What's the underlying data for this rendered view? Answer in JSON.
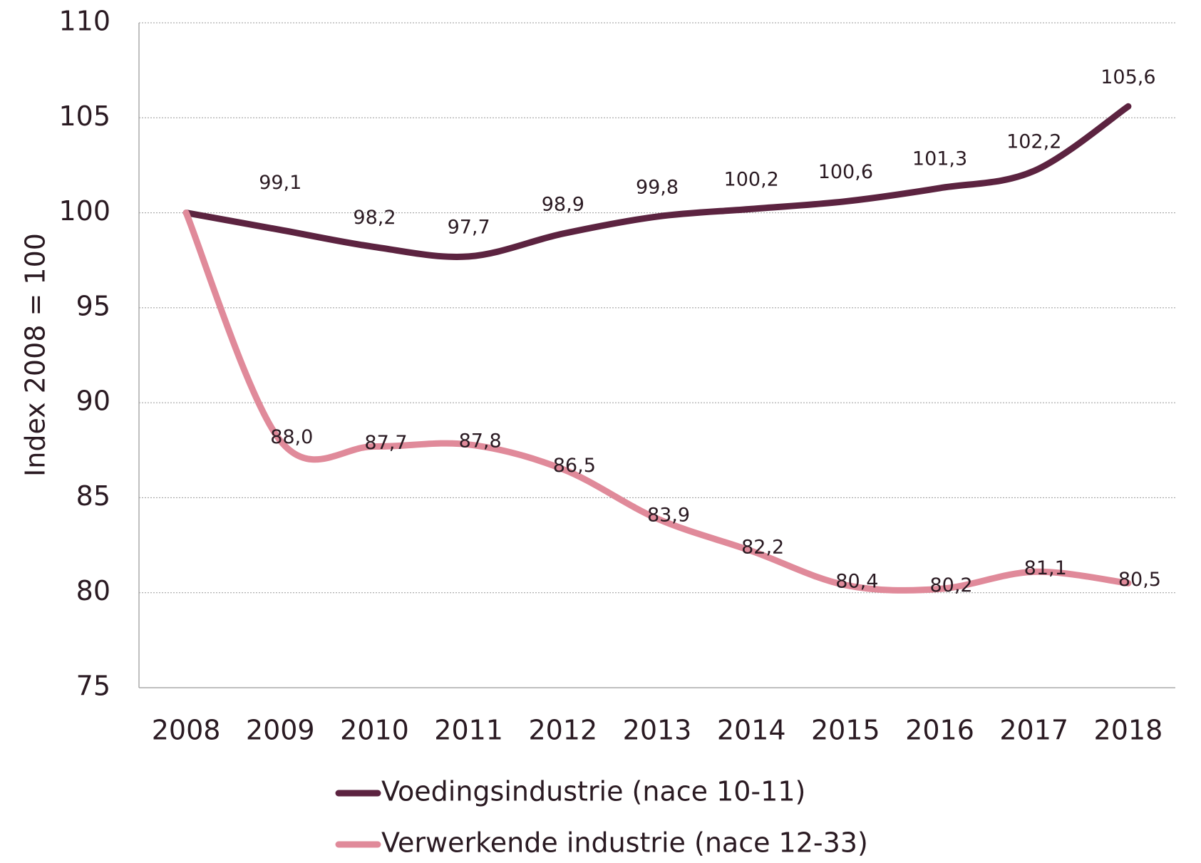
{
  "chart_data": {
    "type": "line",
    "y_label": "Index 2008 = 100",
    "categories": [
      "2008",
      "2009",
      "2010",
      "2011",
      "2012",
      "2013",
      "2014",
      "2015",
      "2016",
      "2017",
      "2018"
    ],
    "series": [
      {
        "name": "Voedingsindustrie (nace 10-11)",
        "color": "#5c2340",
        "values": [
          100,
          99.1,
          98.2,
          97.7,
          98.9,
          99.8,
          100.2,
          100.6,
          101.3,
          102.2,
          105.6
        ],
        "value_labels": [
          null,
          "99,1",
          "98,2",
          "97,7",
          "98,9",
          "99,8",
          "100,2",
          "100,6",
          "101,3",
          "102,2",
          "105,6"
        ]
      },
      {
        "name": "Verwerkende industrie (nace 12-33)",
        "color": "#e08a9a",
        "values": [
          100,
          88.0,
          87.7,
          87.8,
          86.5,
          83.9,
          82.2,
          80.4,
          80.2,
          81.1,
          80.5
        ],
        "value_labels": [
          null,
          "88,0",
          "87,7",
          "87,8",
          "86,5",
          "83,9",
          "82,2",
          "80,4",
          "80,2",
          "81,1",
          "80,5"
        ]
      }
    ],
    "ylim": [
      75,
      110
    ],
    "yticks": [
      75,
      80,
      85,
      90,
      95,
      100,
      105,
      110
    ],
    "grid": true,
    "legend": "bottom"
  }
}
